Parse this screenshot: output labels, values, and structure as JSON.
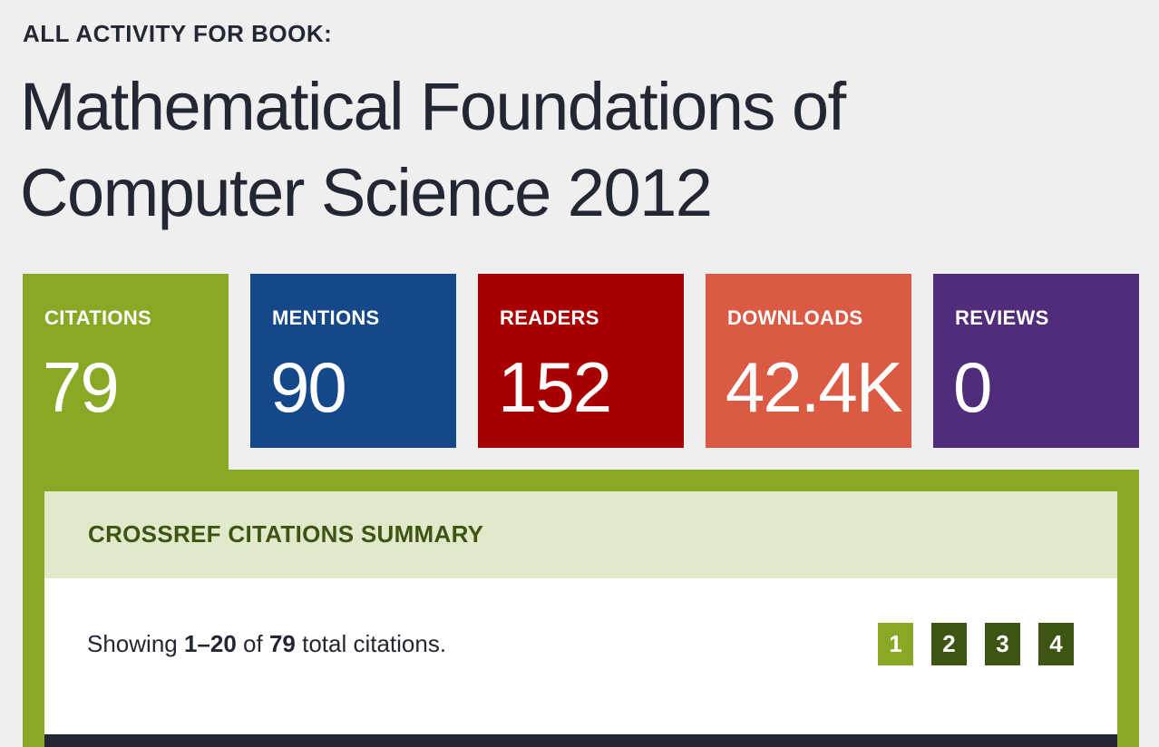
{
  "heading": {
    "eyebrow": "ALL ACTIVITY FOR BOOK:",
    "title": "Mathematical Foundations of Computer Science 2012"
  },
  "tabs": [
    {
      "label": "CITATIONS",
      "value": "79",
      "color": "#88a826",
      "active": true
    },
    {
      "label": "MENTIONS",
      "value": "90",
      "color": "#154889",
      "active": false
    },
    {
      "label": "READERS",
      "value": "152",
      "color": "#a80000",
      "active": false
    },
    {
      "label": "DOWNLOADS",
      "value": "42.4K",
      "color": "#da5a44",
      "active": false
    },
    {
      "label": "REVIEWS",
      "value": "0",
      "color": "#512c7b",
      "active": false
    }
  ],
  "panel": {
    "header": "CROSSREF CITATIONS SUMMARY",
    "showing": {
      "prefix": "Showing ",
      "range": "1–20",
      "middle": " of ",
      "total": "79",
      "suffix": " total citations."
    },
    "pagination": {
      "current": "1",
      "pages": [
        "1",
        "2",
        "3",
        "4"
      ],
      "active_color": "#88a826",
      "inactive_color": "#3d5412"
    }
  },
  "colors": {
    "background": "#efefef",
    "panel_header_bg": "#e1e9cb",
    "panel_header_text": "#3d5412",
    "dark": "#232633"
  }
}
